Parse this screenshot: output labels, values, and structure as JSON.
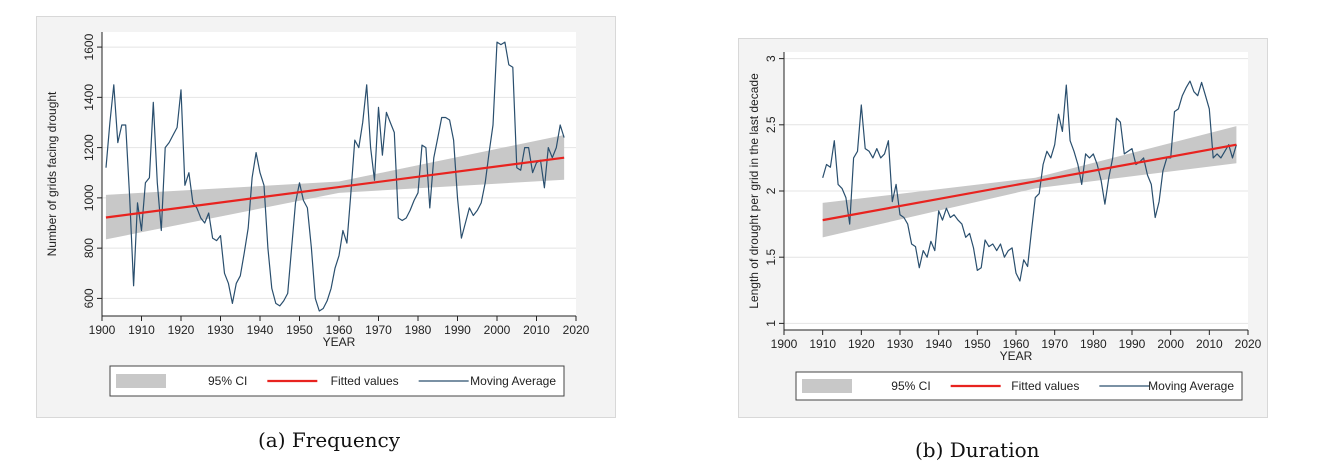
{
  "captions": [
    "(a) Frequency",
    "(b) Duration"
  ],
  "legend": {
    "ci": "95% CI",
    "fit": "Fitted values",
    "ma": "Moving Average"
  },
  "colors": {
    "ma": "#2a4f6e",
    "fit": "#e8231f",
    "ci": "#c8c8c8",
    "plot_bg": "#ffffff",
    "outer_bg": "#f3f3f3"
  },
  "chart_data": [
    {
      "type": "line",
      "xlabel": "YEAR",
      "ylabel": "Number of grids facing drought",
      "xlim": [
        1900,
        2020
      ],
      "ylim": [
        530,
        1660
      ],
      "xticks": [
        1900,
        1910,
        1920,
        1930,
        1940,
        1950,
        1960,
        1970,
        1980,
        1990,
        2000,
        2010,
        2020
      ],
      "yticks": [
        600,
        800,
        1000,
        1200,
        1400,
        1600
      ],
      "grid": "horizontal",
      "legend_position": "bottom",
      "series": [
        {
          "name": "Moving Average",
          "kind": "line",
          "x": [
            1901,
            1902,
            1903,
            1904,
            1905,
            1906,
            1907,
            1908,
            1909,
            1910,
            1911,
            1912,
            1913,
            1914,
            1915,
            1916,
            1917,
            1918,
            1919,
            1920,
            1921,
            1922,
            1923,
            1924,
            1925,
            1926,
            1927,
            1928,
            1929,
            1930,
            1931,
            1932,
            1933,
            1934,
            1935,
            1936,
            1937,
            1938,
            1939,
            1940,
            1941,
            1942,
            1943,
            1944,
            1945,
            1946,
            1947,
            1948,
            1949,
            1950,
            1951,
            1952,
            1953,
            1954,
            1955,
            1956,
            1957,
            1958,
            1959,
            1960,
            1961,
            1962,
            1963,
            1964,
            1965,
            1966,
            1967,
            1968,
            1969,
            1970,
            1971,
            1972,
            1973,
            1974,
            1975,
            1976,
            1977,
            1978,
            1979,
            1980,
            1981,
            1982,
            1983,
            1984,
            1985,
            1986,
            1987,
            1988,
            1989,
            1990,
            1991,
            1992,
            1993,
            1994,
            1995,
            1996,
            1997,
            1998,
            1999,
            2000,
            2001,
            2002,
            2003,
            2004,
            2005,
            2006,
            2007,
            2008,
            2009,
            2010,
            2011,
            2012,
            2013,
            2014,
            2015,
            2016,
            2017
          ],
          "y": [
            1120,
            1300,
            1450,
            1220,
            1290,
            1290,
            1000,
            650,
            980,
            870,
            1060,
            1080,
            1380,
            1060,
            870,
            1200,
            1220,
            1250,
            1280,
            1430,
            1050,
            1100,
            980,
            960,
            920,
            900,
            940,
            840,
            830,
            850,
            700,
            660,
            580,
            660,
            690,
            780,
            880,
            1080,
            1180,
            1100,
            1050,
            800,
            640,
            580,
            570,
            590,
            620,
            800,
            980,
            1060,
            990,
            960,
            800,
            600,
            550,
            560,
            590,
            640,
            720,
            770,
            870,
            820,
            1020,
            1230,
            1200,
            1300,
            1450,
            1200,
            1070,
            1360,
            1170,
            1340,
            1300,
            1260,
            920,
            910,
            920,
            950,
            990,
            1020,
            1210,
            1200,
            960,
            1160,
            1240,
            1320,
            1320,
            1310,
            1230,
            1000,
            840,
            900,
            960,
            930,
            950,
            980,
            1060,
            1180,
            1290,
            1620,
            1610,
            1620,
            1530,
            1520,
            1120,
            1110,
            1200,
            1200,
            1100,
            1140,
            1150,
            1040,
            1200,
            1160,
            1200,
            1290,
            1240
          ],
          "color": "#2a4f6e"
        },
        {
          "name": "Fitted values",
          "kind": "line",
          "x": [
            1901,
            2017
          ],
          "y": [
            922,
            1160
          ],
          "color": "#e8231f"
        },
        {
          "name": "95% CI",
          "kind": "band",
          "x": [
            1901,
            1960,
            2017
          ],
          "lower": [
            835,
            1020,
            1072
          ],
          "upper": [
            1012,
            1065,
            1250
          ],
          "color": "#c8c8c8"
        }
      ]
    },
    {
      "type": "line",
      "xlabel": "YEAR",
      "ylabel": "Length of drought per grid in the last decade",
      "xlim": [
        1900,
        2020
      ],
      "ylim": [
        0.95,
        3.05
      ],
      "xticks": [
        1900,
        1910,
        1920,
        1930,
        1940,
        1950,
        1960,
        1970,
        1980,
        1990,
        2000,
        2010,
        2020
      ],
      "yticks": [
        1,
        1.5,
        2,
        2.5,
        3
      ],
      "yticklabels": [
        "1",
        "1.5",
        "2",
        "2.5",
        "3"
      ],
      "grid": "horizontal",
      "legend_position": "bottom",
      "series": [
        {
          "name": "Moving Average",
          "kind": "line",
          "x": [
            1910,
            1911,
            1912,
            1913,
            1914,
            1915,
            1916,
            1917,
            1918,
            1919,
            1920,
            1921,
            1922,
            1923,
            1924,
            1925,
            1926,
            1927,
            1928,
            1929,
            1930,
            1931,
            1932,
            1933,
            1934,
            1935,
            1936,
            1937,
            1938,
            1939,
            1940,
            1941,
            1942,
            1943,
            1944,
            1945,
            1946,
            1947,
            1948,
            1949,
            1950,
            1951,
            1952,
            1953,
            1954,
            1955,
            1956,
            1957,
            1958,
            1959,
            1960,
            1961,
            1962,
            1963,
            1964,
            1965,
            1966,
            1967,
            1968,
            1969,
            1970,
            1971,
            1972,
            1973,
            1974,
            1975,
            1976,
            1977,
            1978,
            1979,
            1980,
            1981,
            1982,
            1983,
            1984,
            1985,
            1986,
            1987,
            1988,
            1989,
            1990,
            1991,
            1992,
            1993,
            1994,
            1995,
            1996,
            1997,
            1998,
            1999,
            2000,
            2001,
            2002,
            2003,
            2004,
            2005,
            2006,
            2007,
            2008,
            2009,
            2010,
            2011,
            2012,
            2013,
            2014,
            2015,
            2016,
            2017
          ],
          "y": [
            2.1,
            2.2,
            2.18,
            2.38,
            2.05,
            2.02,
            1.95,
            1.75,
            2.25,
            2.3,
            2.65,
            2.32,
            2.3,
            2.25,
            2.32,
            2.25,
            2.28,
            2.38,
            1.92,
            2.05,
            1.82,
            1.8,
            1.75,
            1.6,
            1.58,
            1.42,
            1.55,
            1.5,
            1.62,
            1.55,
            1.85,
            1.78,
            1.87,
            1.8,
            1.82,
            1.78,
            1.75,
            1.65,
            1.68,
            1.57,
            1.4,
            1.42,
            1.63,
            1.58,
            1.6,
            1.55,
            1.6,
            1.5,
            1.55,
            1.57,
            1.38,
            1.32,
            1.48,
            1.43,
            1.7,
            1.95,
            1.98,
            2.2,
            2.3,
            2.25,
            2.35,
            2.58,
            2.45,
            2.8,
            2.38,
            2.3,
            2.2,
            2.05,
            2.28,
            2.25,
            2.28,
            2.2,
            2.08,
            1.9,
            2.1,
            2.25,
            2.55,
            2.52,
            2.28,
            2.3,
            2.32,
            2.2,
            2.22,
            2.25,
            2.12,
            2.05,
            1.8,
            1.92,
            2.15,
            2.25,
            2.25,
            2.6,
            2.62,
            2.72,
            2.78,
            2.83,
            2.75,
            2.72,
            2.82,
            2.72,
            2.62,
            2.25,
            2.28,
            2.25,
            2.3,
            2.35,
            2.25,
            2.35
          ],
          "color": "#2a4f6e"
        },
        {
          "name": "Fitted values",
          "kind": "line",
          "x": [
            1910,
            2017
          ],
          "y": [
            1.78,
            2.35
          ],
          "color": "#e8231f"
        },
        {
          "name": "95% CI",
          "kind": "band",
          "x": [
            1910,
            1965,
            2017
          ],
          "lower": [
            1.65,
            2.02,
            2.21
          ],
          "upper": [
            1.91,
            2.1,
            2.49
          ],
          "color": "#c8c8c8"
        }
      ]
    }
  ]
}
